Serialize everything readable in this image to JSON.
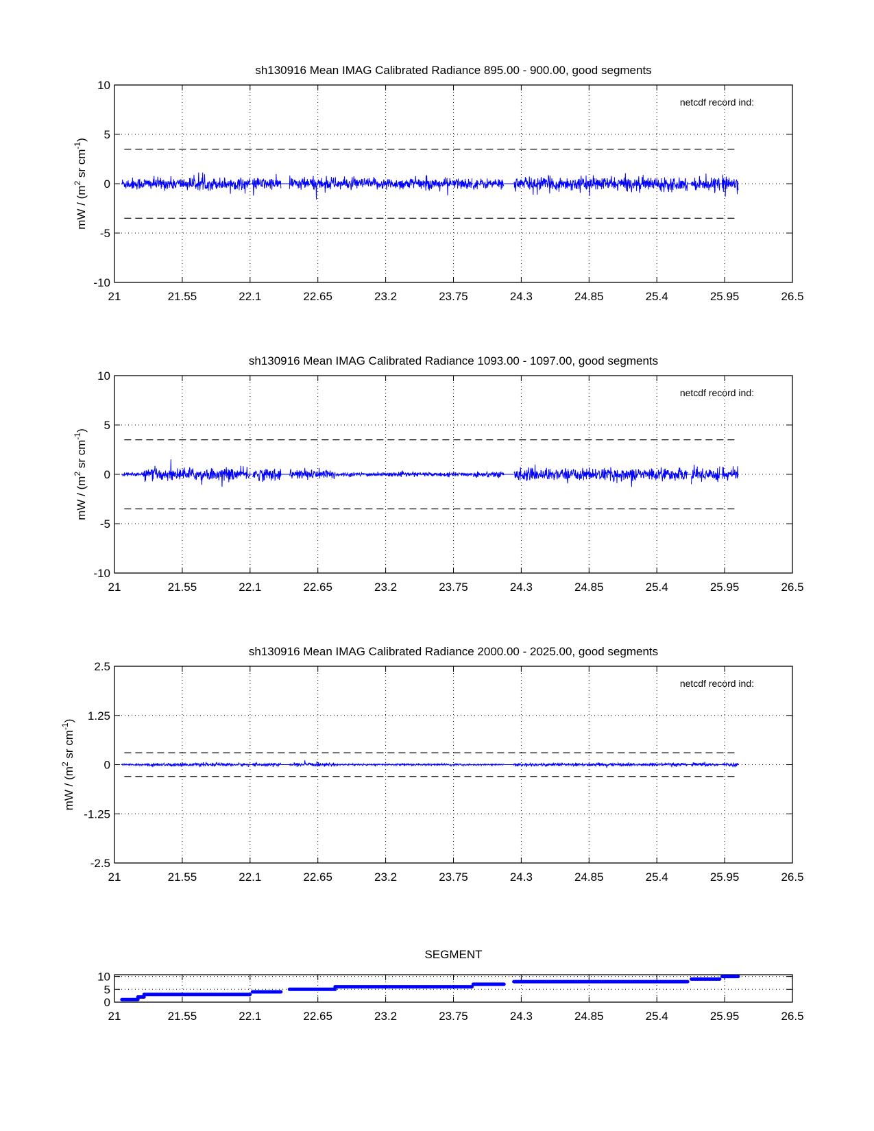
{
  "chart_data": [
    {
      "type": "line",
      "title": "sh130916 Mean IMAG Calibrated Radiance 895.00 - 900.00, good segments",
      "xlabel": "",
      "ylabel": "mW / (m^2 sr cm^-1)",
      "ylabel_parts": [
        "mW / (m",
        "2",
        " sr cm",
        "-1",
        ")"
      ],
      "xlim": [
        21,
        26.5
      ],
      "ylim": [
        -10,
        10
      ],
      "xticks": [
        "21",
        "21.55",
        "22.1",
        "22.65",
        "23.2",
        "23.75",
        "24.3",
        "24.85",
        "25.4",
        "25.95",
        "26.5"
      ],
      "yticks": [
        "-10",
        "-5",
        "0",
        "5",
        "10"
      ],
      "grid": true,
      "annotation": "netcdf record ind:",
      "threshold_lines": [
        3.5,
        -3.5
      ],
      "series_color": "#0000ff",
      "mean": 0,
      "noise_std_per_segment": [
        0.3,
        0.3,
        0.3,
        0.3,
        0.32,
        0.28,
        0.25,
        0.33,
        0.3,
        0.35
      ]
    },
    {
      "type": "line",
      "title": "sh130916 Mean IMAG Calibrated Radiance 1093.00 - 1097.00, good segments",
      "xlabel": "",
      "ylabel": "mW / (m^2 sr cm^-1)",
      "ylabel_parts": [
        "mW / (m",
        "2",
        " sr cm",
        "-1",
        ")"
      ],
      "xlim": [
        21,
        26.5
      ],
      "ylim": [
        -10,
        10
      ],
      "xticks": [
        "21",
        "21.55",
        "22.1",
        "22.65",
        "23.2",
        "23.75",
        "24.3",
        "24.85",
        "25.4",
        "25.95",
        "26.5"
      ],
      "yticks": [
        "-10",
        "-5",
        "0",
        "5",
        "10"
      ],
      "grid": true,
      "annotation": "netcdf record ind:",
      "threshold_lines": [
        3.5,
        -3.5
      ],
      "series_color": "#0000ff",
      "mean": 0,
      "noise_std_per_segment": [
        0.1,
        0.1,
        0.3,
        0.3,
        0.25,
        0.1,
        0.15,
        0.3,
        0.35,
        0.3
      ]
    },
    {
      "type": "line",
      "title": "sh130916 Mean IMAG Calibrated Radiance 2000.00 - 2025.00, good segments",
      "xlabel": "",
      "ylabel": "mW / (m^2 sr cm^-1)",
      "ylabel_parts": [
        "mW / (m",
        "2",
        " sr cm",
        "-1",
        ")"
      ],
      "xlim": [
        21,
        26.5
      ],
      "ylim": [
        -2.5,
        2.5
      ],
      "xticks": [
        "21",
        "21.55",
        "22.1",
        "22.65",
        "23.2",
        "23.75",
        "24.3",
        "24.85",
        "25.4",
        "25.95",
        "26.5"
      ],
      "yticks": [
        "-2.5",
        "-1.25",
        "0",
        "1.25",
        "2.5"
      ],
      "grid": true,
      "annotation": "netcdf record ind:",
      "threshold_lines": [
        0.3,
        -0.3
      ],
      "series_color": "#0000ff",
      "mean": 0,
      "noise_std_per_segment": [
        0.012,
        0.012,
        0.02,
        0.018,
        0.02,
        0.012,
        0.01,
        0.02,
        0.022,
        0.02
      ]
    },
    {
      "type": "line",
      "title": "SEGMENT",
      "xlabel": "",
      "ylabel": "",
      "xlim": [
        21,
        26.5
      ],
      "ylim": [
        0,
        10.7
      ],
      "xticks": [
        "21",
        "21.55",
        "22.1",
        "22.65",
        "23.2",
        "23.75",
        "24.3",
        "24.85",
        "25.4",
        "25.95",
        "26.5"
      ],
      "yticks": [
        "0",
        "5",
        "10"
      ],
      "grid": true,
      "series_color": "#0000ff",
      "segments": [
        {
          "segment": 1,
          "x": [
            21.06,
            21.19
          ]
        },
        {
          "segment": 2,
          "x": [
            21.19,
            21.24
          ]
        },
        {
          "segment": 3,
          "x": [
            21.24,
            22.1
          ]
        },
        {
          "segment": 4,
          "x": [
            22.12,
            22.35
          ]
        },
        {
          "segment": 5,
          "x": [
            22.42,
            22.79
          ]
        },
        {
          "segment": 6,
          "x": [
            22.79,
            23.9
          ]
        },
        {
          "segment": 7,
          "x": [
            23.91,
            24.16
          ]
        },
        {
          "segment": 8,
          "x": [
            24.24,
            25.65
          ]
        },
        {
          "segment": 9,
          "x": [
            25.68,
            25.91
          ]
        },
        {
          "segment": 10,
          "x": [
            25.93,
            26.06
          ]
        }
      ]
    }
  ]
}
